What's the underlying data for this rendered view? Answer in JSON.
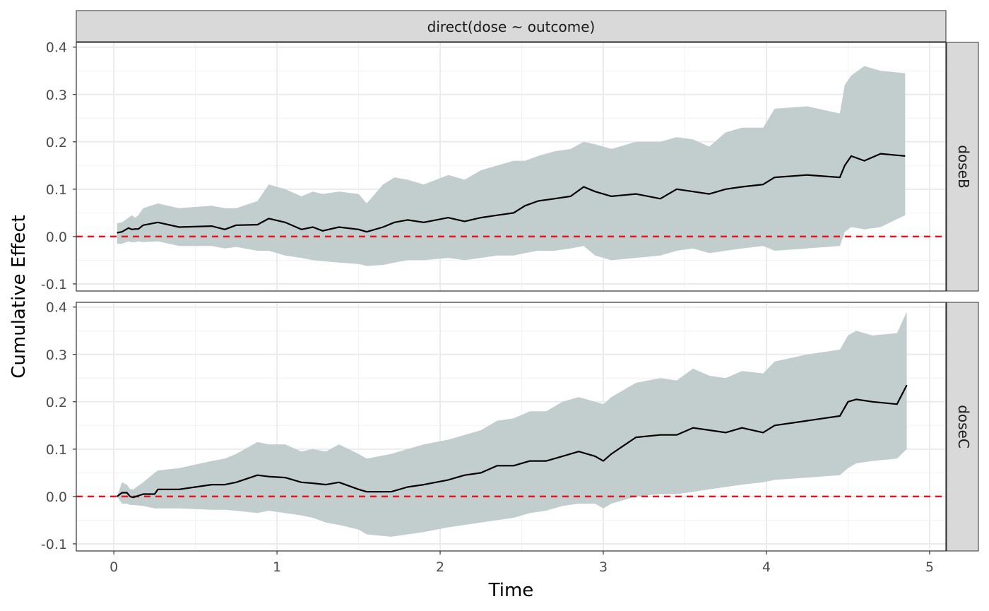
{
  "chart_data": {
    "type": "area",
    "facet_title": "direct(dose ~ outcome)",
    "xlabel": "Time",
    "ylabel": "Cumulative Effect",
    "xlim": [
      -0.23,
      5.1
    ],
    "ylim": [
      -0.115,
      0.41
    ],
    "x_ticks": [
      {
        "value": 0,
        "label": "0"
      },
      {
        "value": 1,
        "label": "1"
      },
      {
        "value": 2,
        "label": "2"
      },
      {
        "value": 3,
        "label": "3"
      },
      {
        "value": 4,
        "label": "4"
      },
      {
        "value": 5,
        "label": "5"
      }
    ],
    "y_ticks": [
      {
        "value": -0.1,
        "label": "-0.1"
      },
      {
        "value": 0.0,
        "label": "0.0"
      },
      {
        "value": 0.1,
        "label": "0.1"
      },
      {
        "value": 0.2,
        "label": "0.2"
      },
      {
        "value": 0.3,
        "label": "0.3"
      },
      {
        "value": 0.4,
        "label": "0.4"
      }
    ],
    "reference_line": {
      "y": 0,
      "style": "dashed",
      "color": "#e8141b"
    },
    "band_color": "#c2cece",
    "line_color": "#000000",
    "grid": true,
    "panels": [
      {
        "label": "doseB",
        "x": [
          0.02,
          0.05,
          0.09,
          0.11,
          0.13,
          0.15,
          0.18,
          0.27,
          0.4,
          0.6,
          0.68,
          0.75,
          0.88,
          0.95,
          1.05,
          1.15,
          1.22,
          1.28,
          1.38,
          1.5,
          1.55,
          1.65,
          1.72,
          1.8,
          1.9,
          2.05,
          2.15,
          2.25,
          2.35,
          2.45,
          2.52,
          2.6,
          2.7,
          2.8,
          2.88,
          2.95,
          3.05,
          3.2,
          3.35,
          3.45,
          3.55,
          3.65,
          3.75,
          3.85,
          3.98,
          4.05,
          4.25,
          4.45,
          4.48,
          4.52,
          4.6,
          4.7,
          4.85
        ],
        "y": [
          0.008,
          0.01,
          0.018,
          0.015,
          0.016,
          0.016,
          0.024,
          0.03,
          0.02,
          0.022,
          0.015,
          0.024,
          0.025,
          0.038,
          0.03,
          0.015,
          0.02,
          0.012,
          0.02,
          0.015,
          0.01,
          0.02,
          0.03,
          0.035,
          0.03,
          0.04,
          0.032,
          0.04,
          0.045,
          0.05,
          0.065,
          0.075,
          0.08,
          0.085,
          0.105,
          0.095,
          0.085,
          0.09,
          0.08,
          0.1,
          0.095,
          0.09,
          0.1,
          0.105,
          0.11,
          0.125,
          0.13,
          0.125,
          0.15,
          0.17,
          0.16,
          0.175,
          0.17
        ],
        "upper": [
          0.028,
          0.03,
          0.04,
          0.045,
          0.04,
          0.045,
          0.06,
          0.07,
          0.06,
          0.065,
          0.06,
          0.06,
          0.075,
          0.11,
          0.1,
          0.085,
          0.095,
          0.09,
          0.095,
          0.09,
          0.07,
          0.11,
          0.125,
          0.12,
          0.11,
          0.13,
          0.12,
          0.14,
          0.15,
          0.16,
          0.16,
          0.17,
          0.18,
          0.185,
          0.2,
          0.195,
          0.185,
          0.2,
          0.2,
          0.21,
          0.205,
          0.19,
          0.22,
          0.23,
          0.23,
          0.27,
          0.275,
          0.26,
          0.32,
          0.34,
          0.36,
          0.35,
          0.345
        ],
        "lower": [
          -0.015,
          -0.015,
          -0.01,
          -0.012,
          -0.012,
          -0.01,
          -0.012,
          -0.01,
          -0.02,
          -0.02,
          -0.025,
          -0.022,
          -0.03,
          -0.03,
          -0.04,
          -0.045,
          -0.05,
          -0.052,
          -0.055,
          -0.058,
          -0.062,
          -0.06,
          -0.055,
          -0.05,
          -0.05,
          -0.045,
          -0.05,
          -0.045,
          -0.04,
          -0.04,
          -0.035,
          -0.03,
          -0.03,
          -0.025,
          -0.02,
          -0.04,
          -0.05,
          -0.045,
          -0.04,
          -0.03,
          -0.025,
          -0.035,
          -0.03,
          -0.025,
          -0.02,
          -0.03,
          -0.025,
          -0.02,
          0.01,
          0.02,
          0.015,
          0.02,
          0.045
        ]
      },
      {
        "label": "doseC",
        "x": [
          0.02,
          0.05,
          0.08,
          0.1,
          0.12,
          0.18,
          0.25,
          0.27,
          0.4,
          0.6,
          0.68,
          0.75,
          0.88,
          0.95,
          1.05,
          1.15,
          1.22,
          1.3,
          1.38,
          1.5,
          1.55,
          1.7,
          1.8,
          1.9,
          2.05,
          2.15,
          2.25,
          2.35,
          2.45,
          2.55,
          2.65,
          2.75,
          2.85,
          2.95,
          3.0,
          3.05,
          3.2,
          3.35,
          3.45,
          3.55,
          3.65,
          3.75,
          3.85,
          3.98,
          4.05,
          4.25,
          4.45,
          4.5,
          4.55,
          4.65,
          4.8,
          4.86
        ],
        "y": [
          0.0,
          0.008,
          0.008,
          0.0,
          -0.002,
          0.005,
          0.005,
          0.015,
          0.015,
          0.025,
          0.025,
          0.03,
          0.045,
          0.042,
          0.04,
          0.03,
          0.028,
          0.025,
          0.03,
          0.015,
          0.01,
          0.01,
          0.02,
          0.025,
          0.035,
          0.045,
          0.05,
          0.065,
          0.065,
          0.075,
          0.075,
          0.085,
          0.095,
          0.085,
          0.075,
          0.09,
          0.125,
          0.13,
          0.13,
          0.145,
          0.14,
          0.135,
          0.145,
          0.135,
          0.15,
          0.16,
          0.17,
          0.2,
          0.205,
          0.2,
          0.195,
          0.235
        ],
        "upper": [
          0.0,
          0.03,
          0.025,
          0.015,
          0.015,
          0.03,
          0.05,
          0.055,
          0.06,
          0.075,
          0.08,
          0.09,
          0.115,
          0.11,
          0.11,
          0.095,
          0.1,
          0.095,
          0.11,
          0.09,
          0.08,
          0.09,
          0.1,
          0.11,
          0.12,
          0.13,
          0.14,
          0.16,
          0.165,
          0.18,
          0.18,
          0.2,
          0.21,
          0.2,
          0.195,
          0.21,
          0.24,
          0.25,
          0.245,
          0.27,
          0.255,
          0.25,
          0.265,
          0.26,
          0.285,
          0.3,
          0.31,
          0.34,
          0.35,
          0.34,
          0.345,
          0.39
        ],
        "lower": [
          0.0,
          -0.015,
          -0.015,
          -0.018,
          -0.018,
          -0.02,
          -0.025,
          -0.025,
          -0.025,
          -0.028,
          -0.028,
          -0.03,
          -0.035,
          -0.03,
          -0.035,
          -0.04,
          -0.045,
          -0.055,
          -0.06,
          -0.07,
          -0.08,
          -0.085,
          -0.08,
          -0.075,
          -0.065,
          -0.06,
          -0.055,
          -0.05,
          -0.045,
          -0.035,
          -0.03,
          -0.02,
          -0.015,
          -0.015,
          -0.025,
          -0.015,
          0.0,
          0.005,
          0.005,
          0.01,
          0.015,
          0.02,
          0.025,
          0.03,
          0.035,
          0.04,
          0.045,
          0.06,
          0.07,
          0.075,
          0.08,
          0.1
        ]
      }
    ]
  }
}
